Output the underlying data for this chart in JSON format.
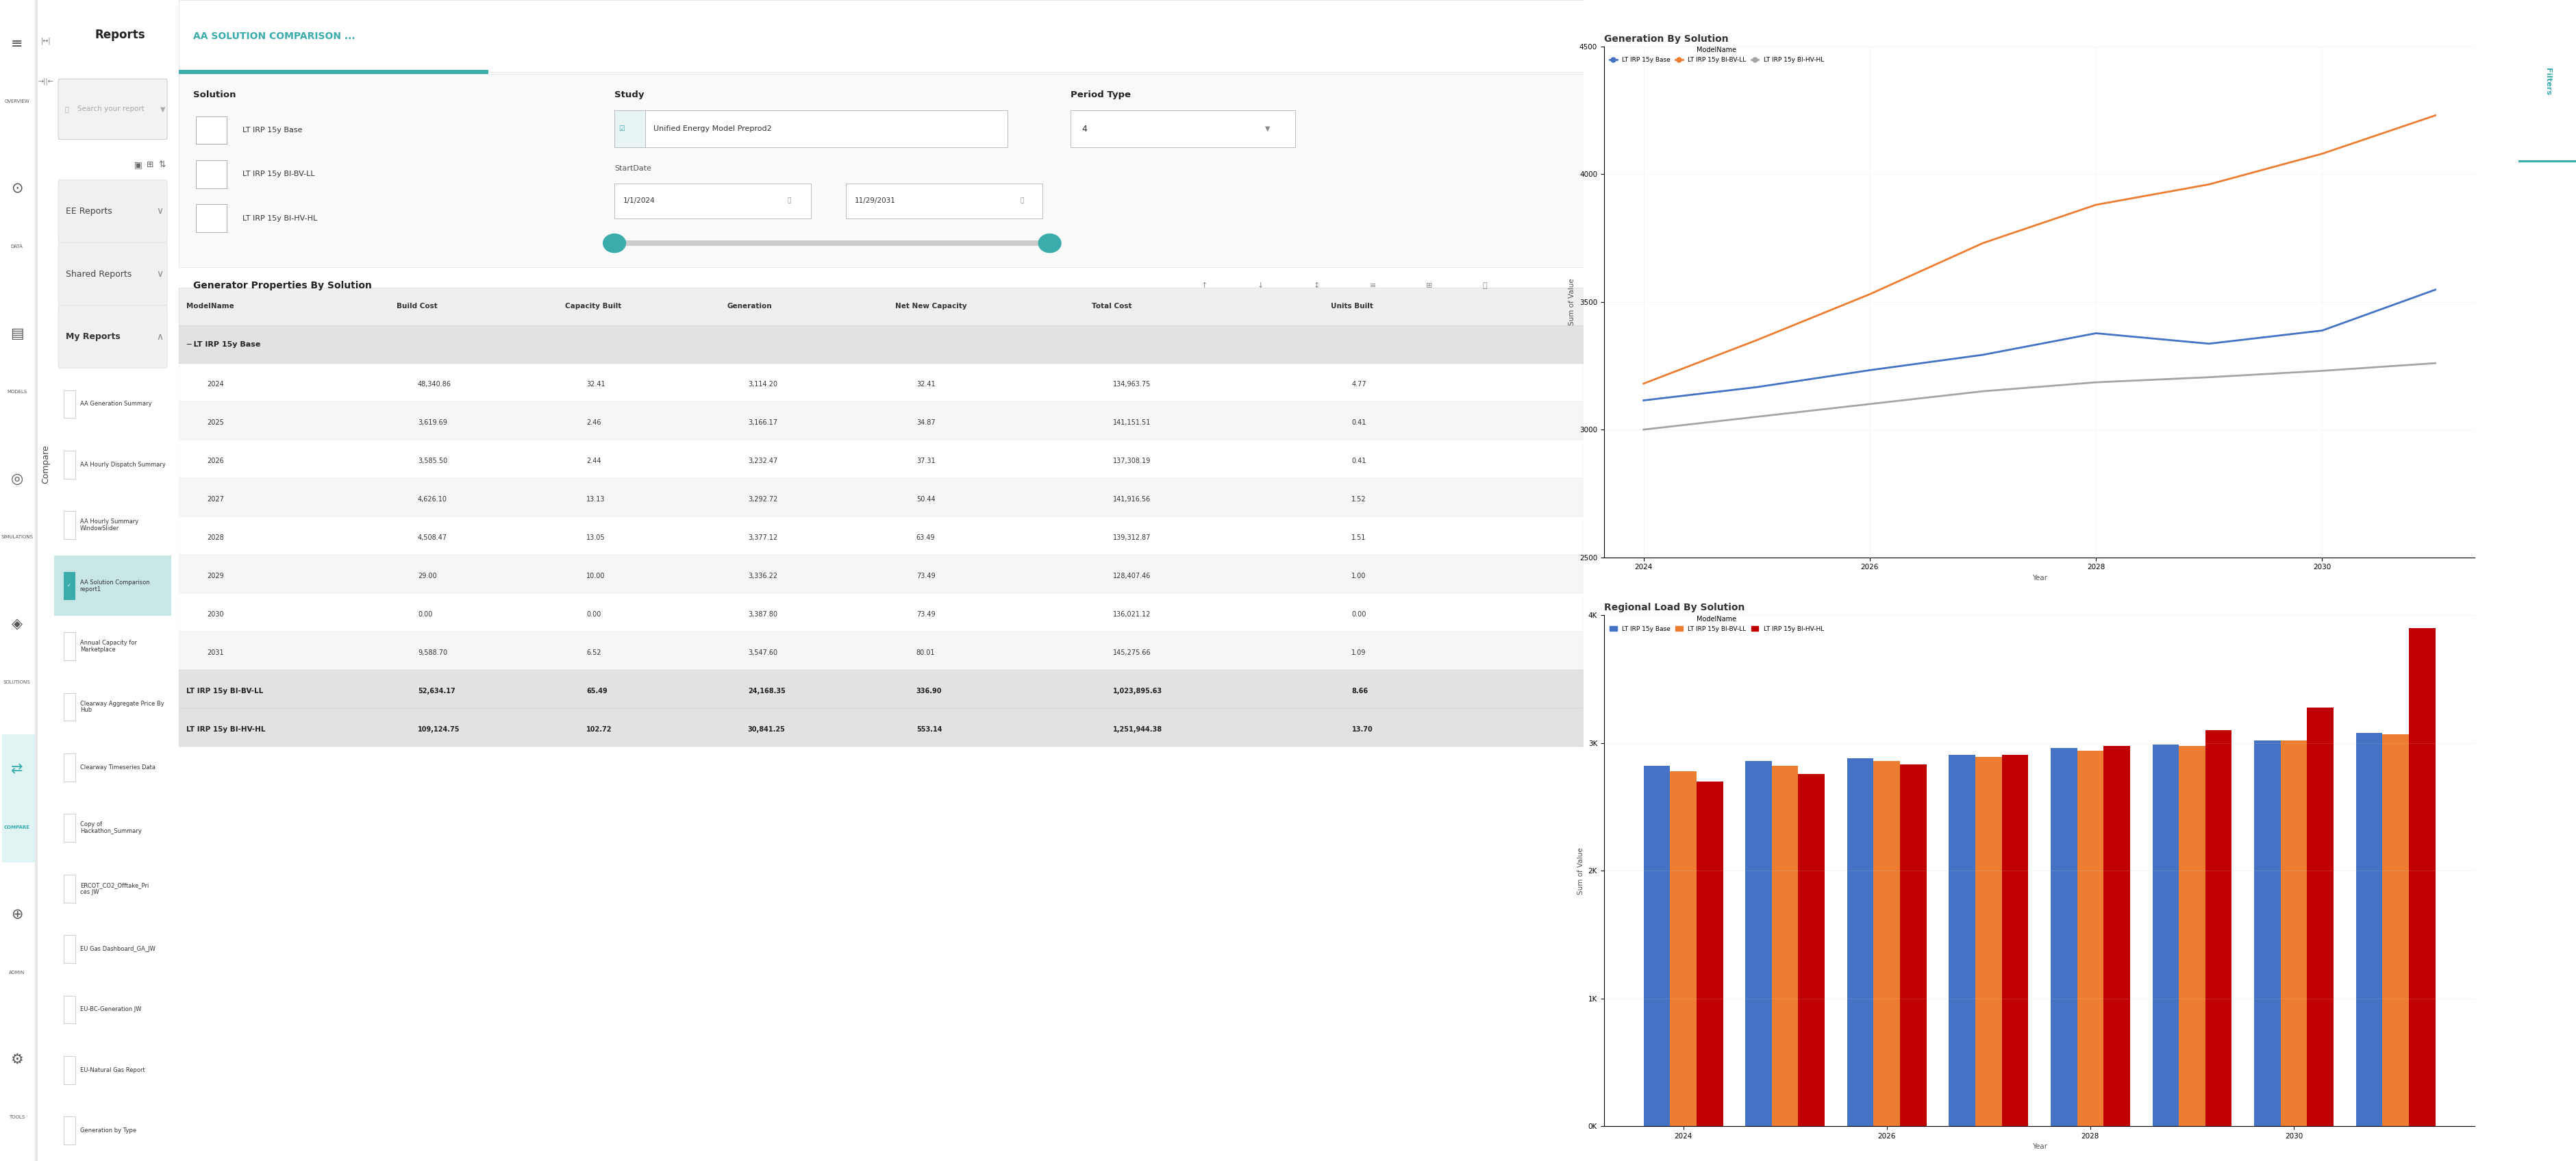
{
  "title": "AA SOLUTION COMPARISON ...",
  "bg_color": "#ffffff",
  "teal": "#3aacac",
  "teal_dark": "#2e9898",
  "nav_bg": "#ffffff",
  "nav_items": [
    "OVERVIEW",
    "DATA",
    "MODELS",
    "SIMULATIONS",
    "SOLUTIONS",
    "COMPARE",
    "ADMIN",
    "TOOLS"
  ],
  "sidebar_title": "Reports",
  "search_placeholder": "Search your report",
  "solution_label": "Solution",
  "solution_items": [
    "LT IRP 15y Base",
    "LT IRP 15y BI-BV-LL",
    "LT IRP 15y BI-HV-HL"
  ],
  "study_label": "Study",
  "study_value": "Unified Energy Model Preprod2",
  "period_label": "Period Type",
  "period_value": "4",
  "start_date": "1/1/2024",
  "end_date": "11/29/2031",
  "ee_reports": "EE Reports",
  "shared_reports": "Shared Reports",
  "my_reports": "My Reports",
  "my_reports_items": [
    "AA Generation Summary",
    "AA Hourly Dispatch Summary",
    "AA Hourly Summary\nWindowSlider",
    "AA Solution Comparison\nreport1",
    "Annual Capacity for\nMarketplace",
    "Clearway Aggregate Price By\nHub",
    "Clearway Timeseries Data",
    "Copy of\nHackathon_Summary",
    "ERCOT_CO2_Offtake_Pri\nces JW",
    "EU Gas Dashboard_GA_JW",
    "EU-BC-Generation JW",
    "EU-Natural Gas Report",
    "Generation by Type"
  ],
  "selected_idx": 3,
  "table_title": "Generator Properties By Solution",
  "table_headers": [
    "ModelName",
    "Build Cost",
    "Capacity Built",
    "Generation",
    "Net New Capacity",
    "Total Cost",
    "Units Built"
  ],
  "base_years": [
    "2024",
    "2025",
    "2026",
    "2027",
    "2028",
    "2029",
    "2030",
    "2031"
  ],
  "base_build_cost": [
    "48,340.86",
    "3,619.69",
    "3,585.50",
    "4,626.10",
    "4,508.47",
    "29.00",
    "0.00",
    "9,588.70"
  ],
  "base_capacity": [
    "32.41",
    "2.46",
    "2.44",
    "13.13",
    "13.05",
    "10.00",
    "0.00",
    "6.52"
  ],
  "base_generation": [
    "3,114.20",
    "3,166.17",
    "3,232.47",
    "3,292.72",
    "3,377.12",
    "3,336.22",
    "3,387.80",
    "3,547.60"
  ],
  "base_net_new": [
    "32.41",
    "34.87",
    "37.31",
    "50.44",
    "63.49",
    "73.49",
    "73.49",
    "80.01"
  ],
  "base_total": [
    "134,963.75",
    "141,151.51",
    "137,308.19",
    "141,916.56",
    "139,312.87",
    "128,407.46",
    "136,021.12",
    "145,275.66"
  ],
  "base_units": [
    "4.77",
    "0.41",
    "0.41",
    "1.52",
    "1.51",
    "1.00",
    "0.00",
    "1.09"
  ],
  "bvll_vals": [
    "52,634.17",
    "65.49",
    "24,168.35",
    "336.90",
    "1,023,895.63",
    "8.66"
  ],
  "bvhl_vals": [
    "109,124.75",
    "102.72",
    "30,841.25",
    "553.14",
    "1,251,944.38",
    "13.70"
  ],
  "gen_title": "Generation By Solution",
  "gen_legend": [
    "LT IRP 15y Base",
    "LT IRP 15y BI-BV-LL",
    "LT IRP 15y BI-HV-HL"
  ],
  "gen_years": [
    2024,
    2025,
    2026,
    2027,
    2028,
    2029,
    2030,
    2031
  ],
  "gen_base": [
    3114.2,
    3166.17,
    3232.47,
    3292.72,
    3377.12,
    3336.22,
    3387.8,
    3547.6
  ],
  "gen_bvll": [
    3180,
    3350,
    3530,
    3730,
    3880,
    3960,
    4080,
    4230
  ],
  "gen_bvhl": [
    3000,
    3050,
    3100,
    3150,
    3185,
    3205,
    3230,
    3260
  ],
  "gen_line_colors": [
    "#4472c4",
    "#ed7d31",
    "#a5a5a5"
  ],
  "gen_ylim": [
    2500,
    4500
  ],
  "gen_yticks": [
    2500,
    3000,
    3500,
    4000,
    4500
  ],
  "gen_xticks": [
    2024,
    2026,
    2028,
    2030
  ],
  "reg_title": "Regional Load By Solution",
  "reg_legend": [
    "LT IRP 15y Base",
    "LT IRP 15y BI-BV-LL",
    "LT IRP 15y BI-HV-HL"
  ],
  "reg_bar_colors": [
    "#4472c4",
    "#ed7d31",
    "#c00000"
  ],
  "reg_years": [
    2024,
    2025,
    2026,
    2027,
    2028,
    2029,
    2030,
    2031
  ],
  "reg_base": [
    2820,
    2860,
    2880,
    2910,
    2960,
    2990,
    3020,
    3080
  ],
  "reg_bvll": [
    2780,
    2820,
    2860,
    2890,
    2940,
    2980,
    3020,
    3070
  ],
  "reg_bvhl": [
    2700,
    2760,
    2830,
    2910,
    2980,
    3100,
    3280,
    3900
  ],
  "reg_ylim": [
    0,
    4000
  ],
  "reg_yticklabels": [
    "0K",
    "1K",
    "2K",
    "3K",
    "4K"
  ],
  "reg_xticks": [
    0,
    2,
    4,
    6
  ],
  "reg_xticklabels": [
    "2024",
    "2026",
    "2028",
    "2030"
  ]
}
